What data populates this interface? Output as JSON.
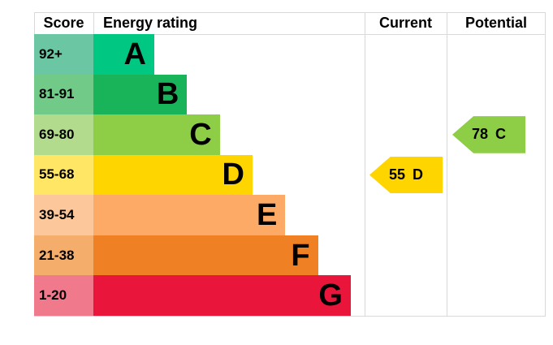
{
  "header": {
    "score": "Score",
    "rating": "Energy rating",
    "current": "Current",
    "potential": "Potential"
  },
  "bands": [
    {
      "letter": "A",
      "score": "92+",
      "color": "#00c781",
      "tint": "#6bc6a3"
    },
    {
      "letter": "B",
      "score": "81-91",
      "color": "#19b459",
      "tint": "#71ca87"
    },
    {
      "letter": "C",
      "score": "69-80",
      "color": "#8dce46",
      "tint": "#b2db8d"
    },
    {
      "letter": "D",
      "score": "55-68",
      "color": "#ffd500",
      "tint": "#ffe664"
    },
    {
      "letter": "E",
      "score": "39-54",
      "color": "#fcaa65",
      "tint": "#fcc79a"
    },
    {
      "letter": "F",
      "score": "21-38",
      "color": "#ef8023",
      "tint": "#f4ad6b"
    },
    {
      "letter": "G",
      "score": "1-20",
      "color": "#e9153b",
      "tint": "#f0798b"
    }
  ],
  "current": {
    "value": "55",
    "letter": "D",
    "band_index": 3,
    "arrow_color": "#ffd500"
  },
  "potential": {
    "value": "78",
    "letter": "C",
    "band_index": 2,
    "arrow_color": "#8dce46"
  },
  "grid_color": "#d9d9d9",
  "chart_data": {
    "type": "bar",
    "title": "Energy rating",
    "categories": [
      "A",
      "B",
      "C",
      "D",
      "E",
      "F",
      "G"
    ],
    "score_ranges": [
      "92+",
      "81-91",
      "69-80",
      "55-68",
      "39-54",
      "21-38",
      "1-20"
    ],
    "band_colors": [
      "#00c781",
      "#19b459",
      "#8dce46",
      "#ffd500",
      "#fcaa65",
      "#ef8023",
      "#e9153b"
    ],
    "bar_relative_lengths": [
      1,
      2,
      3,
      4,
      5,
      6,
      7
    ],
    "columns": [
      "Score",
      "Energy rating",
      "Current",
      "Potential"
    ],
    "markers": [
      {
        "name": "Current",
        "value": 55,
        "band": "D",
        "color": "#ffd500"
      },
      {
        "name": "Potential",
        "value": 78,
        "band": "C",
        "color": "#8dce46"
      }
    ],
    "grid": false,
    "legend_position": "none"
  }
}
